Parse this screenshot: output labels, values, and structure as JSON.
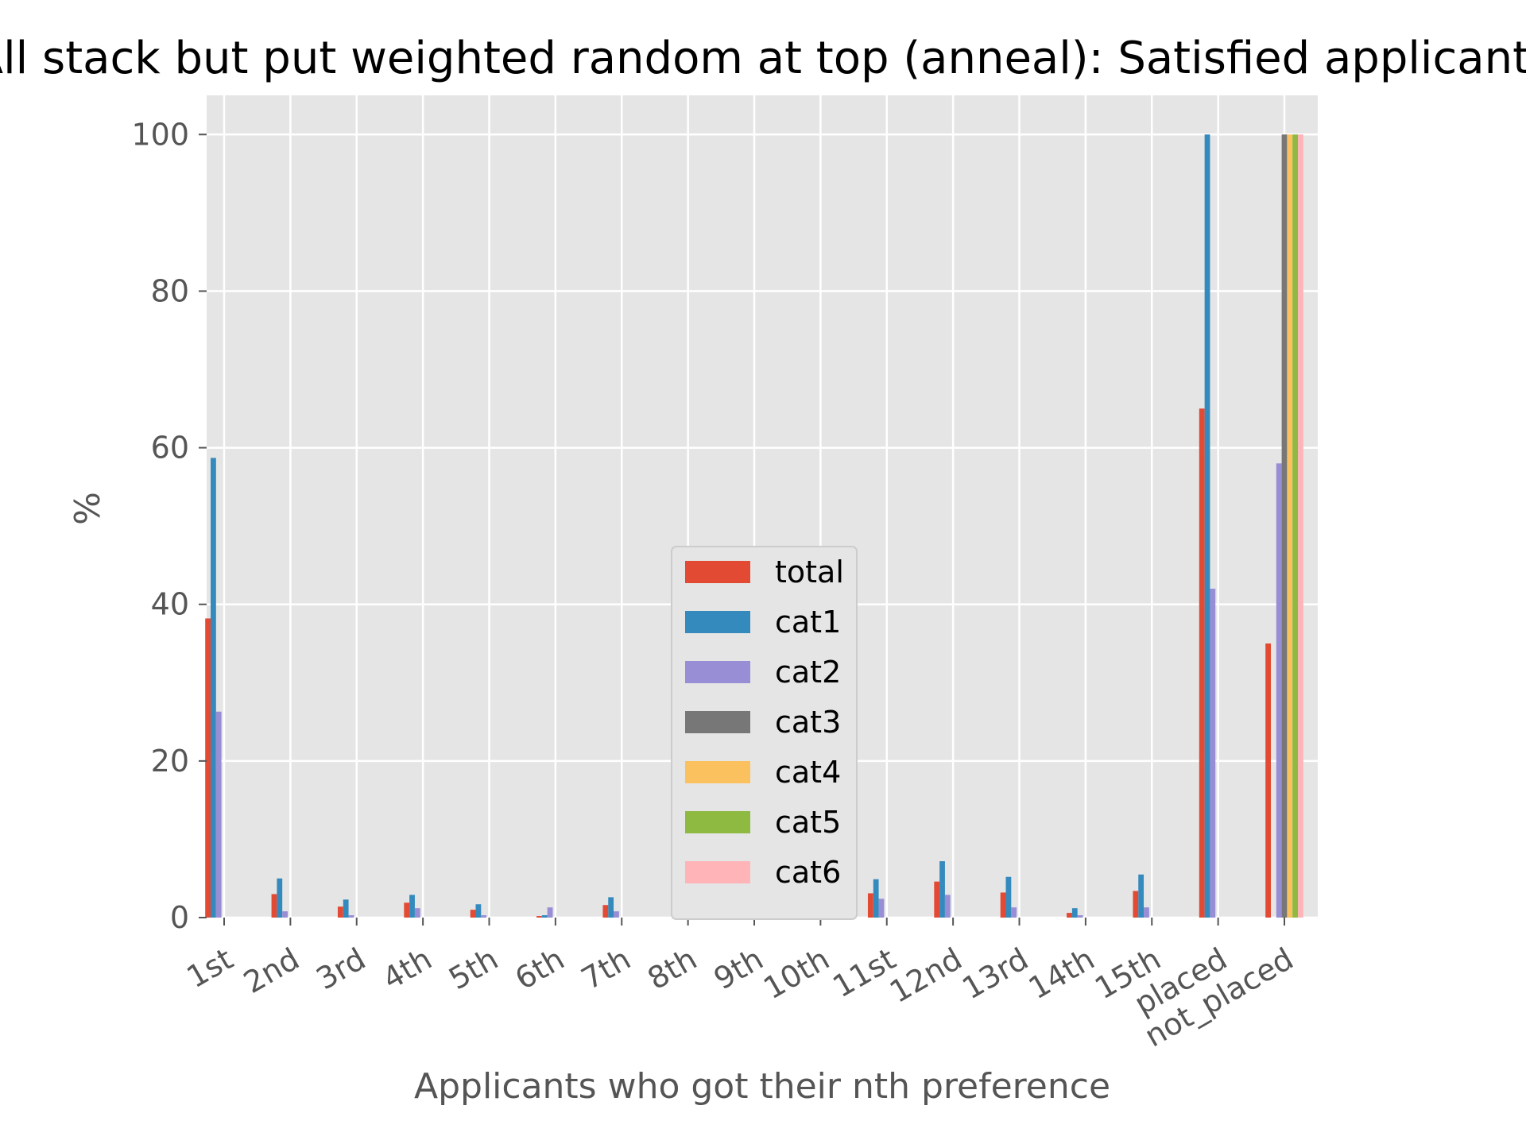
{
  "chart_data": {
    "type": "bar",
    "title": "All stack but put weighted random at top (anneal): Satisfied applicants",
    "xlabel": "Applicants who got their nth preference",
    "ylabel": "%",
    "ylim": [
      0,
      105
    ],
    "yticks": [
      0,
      20,
      40,
      60,
      80,
      100
    ],
    "grid": true,
    "legend_position": "center",
    "categories": [
      "1st",
      "2nd",
      "3rd",
      "4th",
      "5th",
      "6th",
      "7th",
      "8th",
      "9th",
      "10th",
      "11st",
      "12nd",
      "13rd",
      "14th",
      "15th",
      "placed",
      "not_placed"
    ],
    "series": [
      {
        "name": "total",
        "color": "#E24A33",
        "values": [
          38.2,
          3.0,
          1.4,
          1.9,
          1.0,
          0.2,
          1.6,
          0.0,
          0.3,
          0.2,
          3.1,
          4.6,
          3.2,
          0.6,
          3.4,
          65.0,
          35.0
        ]
      },
      {
        "name": "cat1",
        "color": "#348ABD",
        "values": [
          58.7,
          5.0,
          2.3,
          2.9,
          1.7,
          0.3,
          2.6,
          0.0,
          0.5,
          0.4,
          4.9,
          7.2,
          5.2,
          1.2,
          5.5,
          100.0,
          0.0
        ]
      },
      {
        "name": "cat2",
        "color": "#988ED5",
        "values": [
          26.3,
          0.8,
          0.3,
          1.2,
          0.3,
          1.3,
          0.8,
          0.0,
          0.3,
          0.3,
          2.4,
          2.9,
          1.3,
          0.3,
          1.3,
          42.0,
          58.0
        ]
      },
      {
        "name": "cat3",
        "color": "#777777",
        "values": [
          0,
          0,
          0,
          0,
          0,
          0,
          0,
          0,
          0,
          0,
          0,
          0,
          0,
          0,
          0,
          0,
          100.0
        ]
      },
      {
        "name": "cat4",
        "color": "#FBC15E",
        "values": [
          0,
          0,
          0,
          0,
          0,
          0,
          0,
          0,
          0,
          0,
          0,
          0,
          0,
          0,
          0,
          0,
          100.0
        ]
      },
      {
        "name": "cat5",
        "color": "#8EBA42",
        "values": [
          0,
          0,
          0,
          0,
          0,
          0,
          0,
          0,
          0,
          0,
          0,
          0,
          0,
          0,
          0,
          0,
          100.0
        ]
      },
      {
        "name": "cat6",
        "color": "#FFB5B8",
        "values": [
          0,
          0,
          0,
          0,
          0,
          0,
          0,
          0,
          0,
          0,
          0,
          0,
          0,
          0,
          0,
          0,
          100.0
        ]
      }
    ],
    "colors": {
      "plot_background": "#E5E5E5",
      "grid": "#FFFFFF",
      "legend_background": "#E5E5E5",
      "legend_border": "#CCCCCC"
    }
  }
}
